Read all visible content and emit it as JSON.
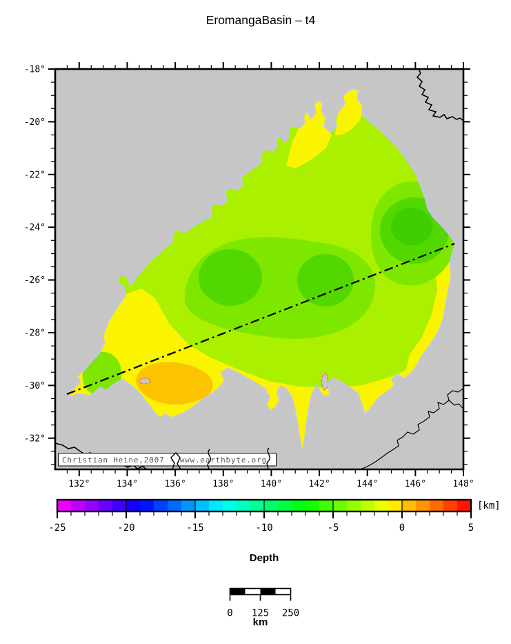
{
  "title": "EromangaBasin – t4",
  "map": {
    "background_color": "#c6c6c6",
    "frame_color": "#000000",
    "lat_axis": {
      "labels": [
        "-18°",
        "-20°",
        "-22°",
        "-24°",
        "-26°",
        "-28°",
        "-30°",
        "-32°"
      ],
      "values": [
        -18,
        -20,
        -22,
        -24,
        -26,
        -28,
        -30,
        -32
      ],
      "minor_step": 0.5
    },
    "lon_axis": {
      "labels": [
        "132°",
        "134°",
        "136°",
        "138°",
        "140°",
        "142°",
        "144°",
        "146°",
        "148°"
      ],
      "values": [
        132,
        134,
        136,
        138,
        140,
        142,
        144,
        146,
        148
      ],
      "minor_step": 0.5
    },
    "copyright": "Christian Heine,2007 - www.earthbyte.org",
    "basin": {
      "outline_color": "#ff2a1a",
      "casing_color": "#c3c6de",
      "fill_yellow": "#faf400",
      "fill_yellow_green": "#aaf000",
      "fill_light_green": "#7de700",
      "fill_green": "#52d800",
      "fill_dark_green": "#3fcf00",
      "fill_orange": "#fbc300"
    },
    "transect_line_color": "#000000",
    "coastline_color": "#000000"
  },
  "colorbar": {
    "unit_label": "[km]",
    "axis_label": "Depth",
    "tick_labels": [
      "-25",
      "-20",
      "-15",
      "-10",
      "-5",
      "0",
      "5"
    ],
    "tick_values": [
      -25,
      -20,
      -15,
      -10,
      -5,
      0,
      5
    ],
    "min": -25,
    "max": 5,
    "cell_size_km": 1,
    "hue_start_deg": 300,
    "hue_end_deg": 0
  },
  "scalebar": {
    "tick_labels": [
      "0",
      "125",
      "250"
    ],
    "tick_values": [
      0,
      125,
      250
    ],
    "unit_label": "km",
    "length_km": 250,
    "segments": 4
  }
}
